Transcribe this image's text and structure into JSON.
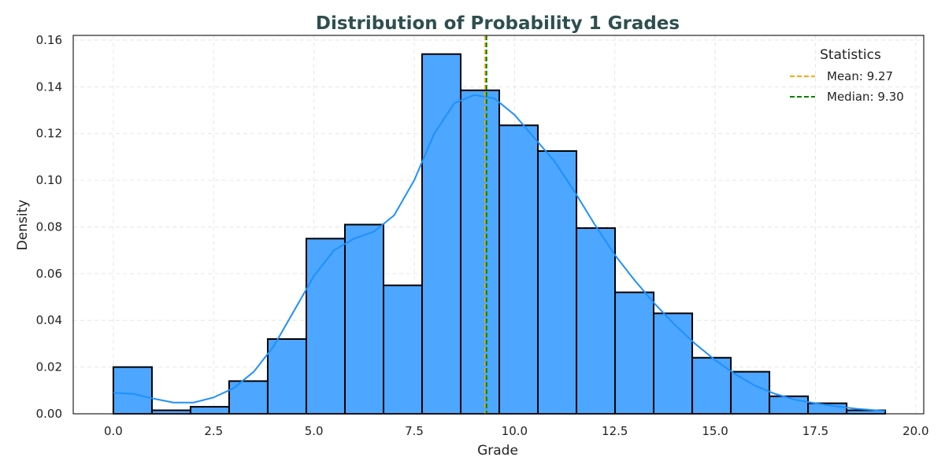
{
  "chart_data": {
    "type": "bar",
    "title": "Distribution of Probability 1 Grades",
    "xlabel": "Grade",
    "ylabel": "Density",
    "xlim": [
      -1,
      20.2
    ],
    "ylim": [
      0,
      0.162
    ],
    "xticks": [
      0.0,
      2.5,
      5.0,
      7.5,
      10.0,
      12.5,
      15.0,
      17.5,
      20.0
    ],
    "xtick_labels": [
      "0.0",
      "2.5",
      "5.0",
      "7.5",
      "10.0",
      "12.5",
      "15.0",
      "17.5",
      "20.0"
    ],
    "yticks": [
      0.0,
      0.02,
      0.04,
      0.06,
      0.08,
      0.1,
      0.12,
      0.14,
      0.16
    ],
    "ytick_labels": [
      "0.00",
      "0.02",
      "0.04",
      "0.06",
      "0.08",
      "0.10",
      "0.12",
      "0.14",
      "0.16"
    ],
    "grid": true,
    "bin_start": 0.0,
    "bin_width": 0.962,
    "values": [
      0.02,
      0.0015,
      0.003,
      0.014,
      0.032,
      0.075,
      0.081,
      0.055,
      0.154,
      0.1385,
      0.1235,
      0.1125,
      0.0795,
      0.052,
      0.043,
      0.024,
      0.018,
      0.0075,
      0.0045,
      0.0015
    ],
    "kde": {
      "x": [
        0.0,
        0.5,
        1.0,
        1.5,
        2.0,
        2.5,
        3.0,
        3.5,
        4.0,
        4.5,
        5.0,
        5.5,
        6.0,
        6.5,
        7.0,
        7.5,
        8.0,
        8.5,
        9.0,
        9.5,
        10.0,
        10.5,
        11.0,
        11.5,
        12.0,
        12.5,
        13.0,
        13.5,
        14.0,
        14.5,
        15.0,
        15.5,
        16.0,
        16.5,
        17.0,
        17.5,
        18.0,
        18.5,
        19.0,
        19.24
      ],
      "y": [
        0.009,
        0.0085,
        0.0065,
        0.0048,
        0.0048,
        0.007,
        0.011,
        0.018,
        0.029,
        0.044,
        0.059,
        0.07,
        0.075,
        0.078,
        0.085,
        0.1,
        0.12,
        0.133,
        0.1365,
        0.135,
        0.128,
        0.118,
        0.108,
        0.095,
        0.081,
        0.068,
        0.057,
        0.047,
        0.038,
        0.03,
        0.023,
        0.017,
        0.012,
        0.0085,
        0.006,
        0.0045,
        0.0032,
        0.0022,
        0.0015,
        0.0012
      ]
    },
    "mean": 9.27,
    "median": 9.3,
    "legend": {
      "title": "Statistics",
      "position": "top-right",
      "entries": [
        "Mean: 9.27",
        "Median: 9.30"
      ]
    },
    "colors": {
      "bar_fill": "#4da6ff",
      "bar_edge": "#000000",
      "kde": "#1e90ff",
      "mean": "#ffa500",
      "median": "#008000",
      "title": "#2f4f4f",
      "grid": "#e6e6e6"
    }
  }
}
